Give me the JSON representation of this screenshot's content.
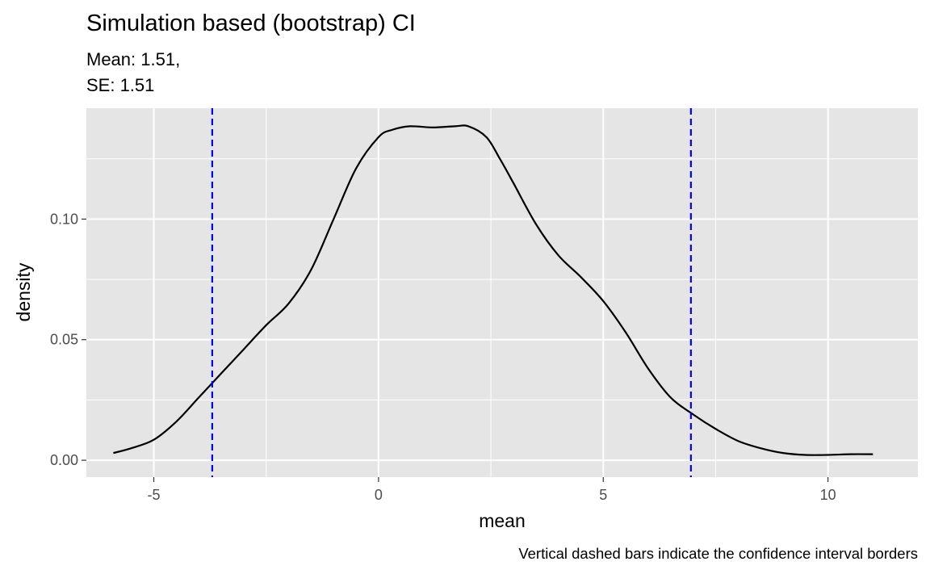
{
  "chart_data": {
    "type": "line",
    "title": "Simulation based (bootstrap) CI",
    "subtitle_lines": [
      "Mean: 1.51,",
      "SE: 1.51"
    ],
    "xlabel": "mean",
    "ylabel": "density",
    "caption": "Vertical dashed bars indicate the confidence interval borders",
    "xlim": [
      -6.5,
      12.0
    ],
    "ylim": [
      -0.007,
      0.146
    ],
    "x_ticks": [
      -5,
      0,
      5,
      10
    ],
    "x_tick_labels": [
      "-5",
      "0",
      "5",
      "10"
    ],
    "y_ticks": [
      0.0,
      0.05,
      0.1
    ],
    "y_tick_labels": [
      "0.00",
      "0.05",
      "0.10"
    ],
    "grid": true,
    "background_color": "#e5e5e5",
    "grid_color": "#ffffff",
    "series": [
      {
        "color": "#000000",
        "x": [
          -5.9,
          -5.5,
          -5.0,
          -4.5,
          -4.0,
          -3.5,
          -3.0,
          -2.5,
          -2.0,
          -1.5,
          -1.0,
          -0.5,
          0.0,
          0.3,
          0.7,
          1.2,
          1.7,
          2.0,
          2.4,
          2.7,
          3.0,
          3.5,
          4.0,
          4.5,
          5.0,
          5.5,
          6.0,
          6.5,
          7.0,
          7.5,
          8.0,
          8.5,
          9.0,
          9.5,
          10.0,
          10.5,
          11.0
        ],
        "y": [
          0.003,
          0.005,
          0.0085,
          0.016,
          0.026,
          0.036,
          0.046,
          0.056,
          0.065,
          0.079,
          0.1,
          0.121,
          0.134,
          0.137,
          0.1385,
          0.138,
          0.1385,
          0.1385,
          0.134,
          0.125,
          0.115,
          0.098,
          0.085,
          0.076,
          0.066,
          0.053,
          0.038,
          0.026,
          0.019,
          0.013,
          0.008,
          0.005,
          0.003,
          0.0022,
          0.0022,
          0.0025,
          0.0025
        ]
      }
    ],
    "ci_lines": {
      "x": [
        -3.7,
        6.95
      ],
      "color": "#0000ff",
      "style": "dashed"
    }
  }
}
